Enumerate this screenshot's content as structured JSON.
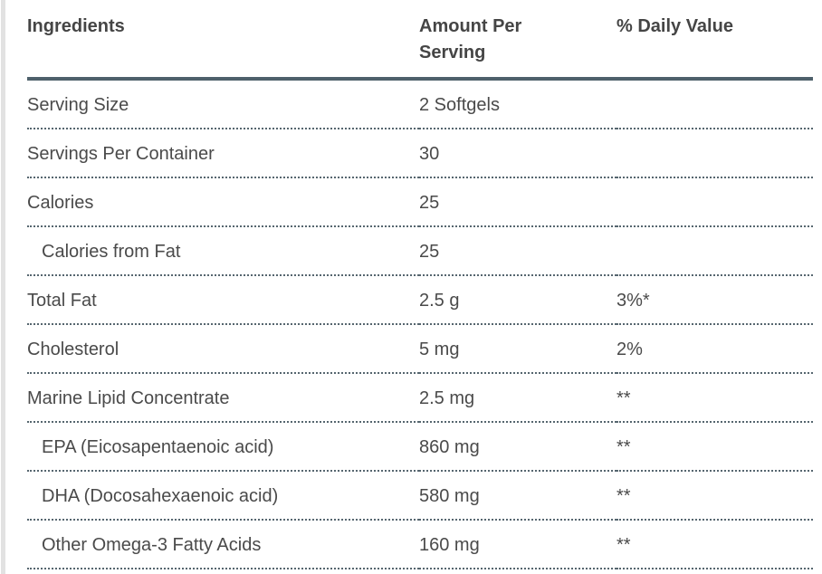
{
  "colors": {
    "header_rule": "#4e606b",
    "dotted_rule": "#56666f",
    "body_text": "#4a4a4a",
    "header_text": "#454545",
    "left_strip": "#e2e2e2",
    "background": "#ffffff"
  },
  "table": {
    "headers": {
      "ingredients": "Ingredients",
      "amount_per_serving": "Amount Per Serving",
      "daily_value": "% Daily Value"
    },
    "rows": [
      {
        "label": "Serving Size",
        "amount": "2 Softgels",
        "daily_value": ""
      },
      {
        "label": "Servings Per Container",
        "amount": "30",
        "daily_value": ""
      },
      {
        "label": "Calories",
        "amount": "25",
        "daily_value": ""
      },
      {
        "label": "Calories from Fat",
        "amount": "25",
        "daily_value": ""
      },
      {
        "label": "Total Fat",
        "amount": "2.5 g",
        "daily_value": "3%*"
      },
      {
        "label": "Cholesterol",
        "amount": "5 mg",
        "daily_value": "2%"
      },
      {
        "label": "Marine Lipid Concentrate",
        "amount": "2.5 mg",
        "daily_value": "**"
      },
      {
        "label": "EPA (Eicosapentaenoic acid)",
        "amount": "860 mg",
        "daily_value": "**"
      },
      {
        "label": "DHA (Docosahexaenoic acid)",
        "amount": "580 mg",
        "daily_value": "**"
      },
      {
        "label": "Other Omega-3 Fatty Acids",
        "amount": "160 mg",
        "daily_value": "**"
      }
    ]
  }
}
